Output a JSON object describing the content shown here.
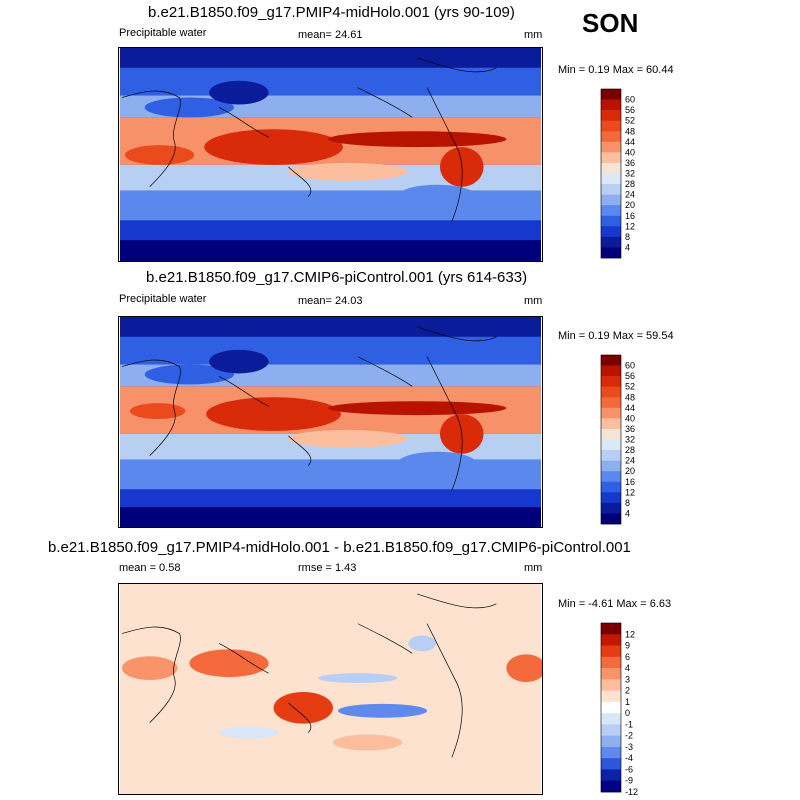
{
  "season": "SON",
  "panels": [
    {
      "title": "b.e21.B1850.f09_g17.PMIP4-midHolo.001 (yrs 90-109)",
      "variable": "Precipitable water",
      "mean_text": "mean=  24.61",
      "units": "mm",
      "minmax_text": "Min =  0.19 Max =  60.44",
      "colorbar_labels": [
        "60",
        "56",
        "52",
        "48",
        "44",
        "40",
        "36",
        "32",
        "28",
        "24",
        "20",
        "16",
        "12",
        "8",
        "4"
      ]
    },
    {
      "title": "b.e21.B1850.f09_g17.CMIP6-piControl.001 (yrs 614-633)",
      "variable": "Precipitable water",
      "mean_text": "mean=  24.03",
      "units": "mm",
      "minmax_text": "Min =  0.19 Max =  59.54",
      "colorbar_labels": [
        "60",
        "56",
        "52",
        "48",
        "44",
        "40",
        "36",
        "32",
        "28",
        "24",
        "20",
        "16",
        "12",
        "8",
        "4"
      ]
    },
    {
      "title": "b.e21.B1850.f09_g17.PMIP4-midHolo.001 - b.e21.B1850.f09_g17.CMIP6-piControl.001",
      "mean_text": "mean =   0.58",
      "rmse_text": "rmse =   1.43",
      "units": "mm",
      "minmax_text": "Min =  -4.61 Max =   6.63",
      "colorbar_labels": [
        "12",
        "9",
        "6",
        "4",
        "3",
        "2",
        "1",
        "0",
        "-1",
        "-2",
        "-3",
        "-4",
        "-6",
        "-9",
        "-12"
      ]
    }
  ],
  "colors": {
    "abs_scale": [
      "#7a0000",
      "#b81200",
      "#d92a0a",
      "#ea4b1c",
      "#f2693a",
      "#f7916a",
      "#fbbf9f",
      "#f6e3d7",
      "#dde8f6",
      "#b7cff2",
      "#8daff0",
      "#5b88ec",
      "#2f5fe2",
      "#1638cc",
      "#0a1c9a",
      "#00007a"
    ],
    "diff_scale": [
      "#7a0000",
      "#c41600",
      "#e63c12",
      "#f46a3c",
      "#f8936a",
      "#fbbd9e",
      "#fde2cf",
      "#ffffff",
      "#d9e6f8",
      "#b9cef4",
      "#8faff0",
      "#5f89ec",
      "#2d57d8",
      "#0a22a8",
      "#000082"
    ]
  }
}
